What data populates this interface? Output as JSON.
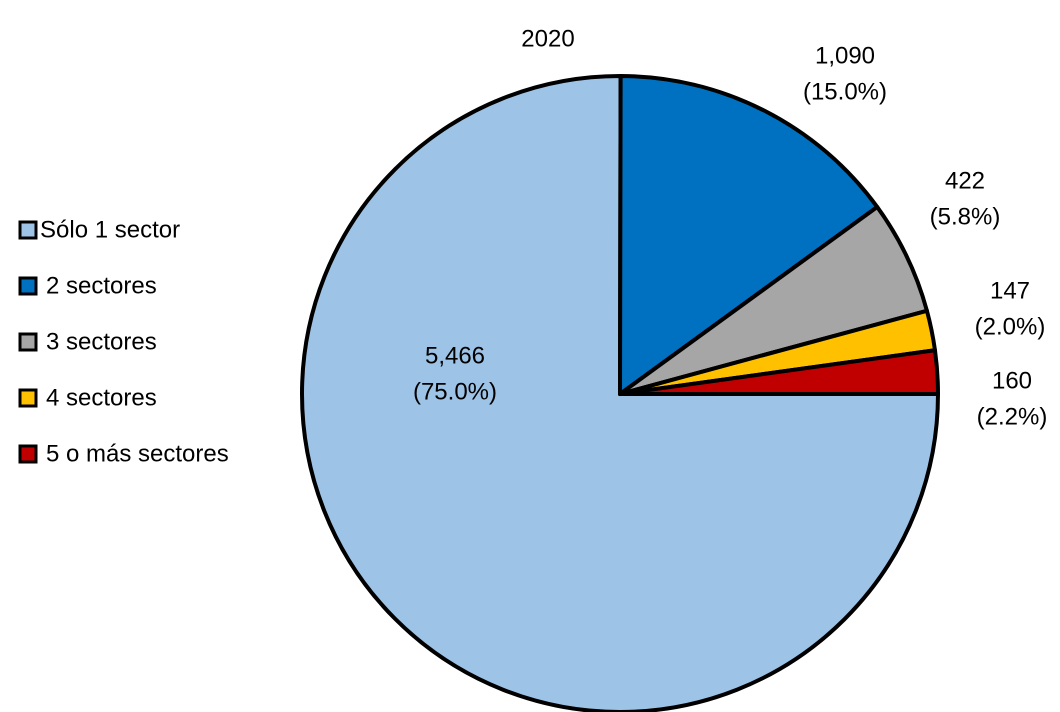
{
  "chart_data": {
    "type": "pie",
    "title": "2020",
    "categories": [
      "Sólo 1 sector",
      "2 sectores",
      "3 sectores",
      "4 sectores",
      "5 o más sectores"
    ],
    "values": [
      5466,
      1090,
      422,
      147,
      160
    ],
    "value_labels": [
      "5,466",
      "1,090",
      "422",
      "147",
      "160"
    ],
    "percent_labels": [
      "(75.0%)",
      "(15.0%)",
      "(5.8%)",
      "(2.0%)",
      "(2.2%)"
    ],
    "colors": [
      "#9dc3e6",
      "#0070c0",
      "#a6a6a6",
      "#ffc000",
      "#c00000"
    ],
    "legend": "left"
  }
}
